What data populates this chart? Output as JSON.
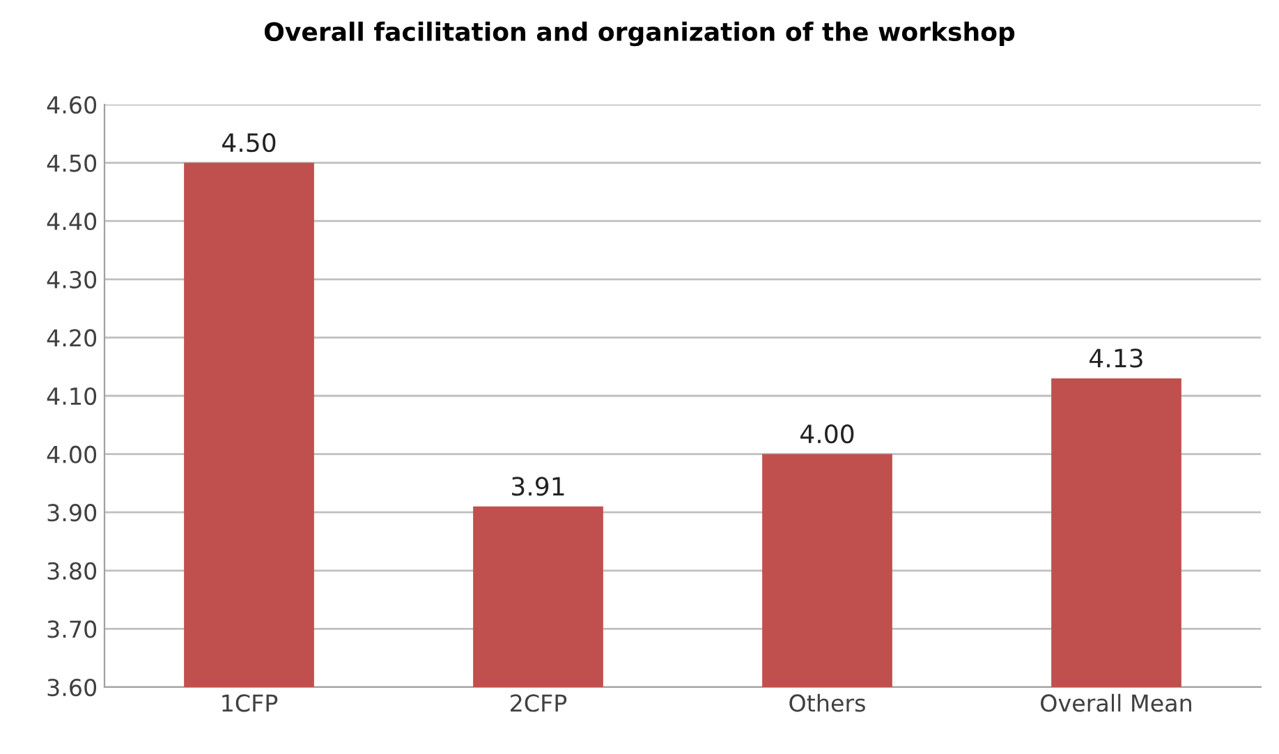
{
  "chart_data": {
    "type": "bar",
    "title": "Overall facilitation and organization of the workshop",
    "categories": [
      "1CFP",
      "2CFP",
      "Others",
      "Overall Mean"
    ],
    "values": [
      4.5,
      3.91,
      4.0,
      4.13
    ],
    "value_labels": [
      "4.50",
      "3.91",
      "4.00",
      "4.13"
    ],
    "color": "#c0504d",
    "ylim": [
      3.6,
      4.6
    ],
    "yticks": [
      {
        "value": 3.6,
        "label": "3.60"
      },
      {
        "value": 3.7,
        "label": "3.70"
      },
      {
        "value": 3.8,
        "label": "3.80"
      },
      {
        "value": 3.9,
        "label": "3.90"
      },
      {
        "value": 4.0,
        "label": "4.00"
      },
      {
        "value": 4.1,
        "label": "4.10"
      },
      {
        "value": 4.2,
        "label": "4.20"
      },
      {
        "value": 4.3,
        "label": "4.30"
      },
      {
        "value": 4.4,
        "label": "4.40"
      },
      {
        "value": 4.5,
        "label": "4.50"
      },
      {
        "value": 4.6,
        "label": "4.60"
      }
    ],
    "grid": "y",
    "legend": false
  }
}
